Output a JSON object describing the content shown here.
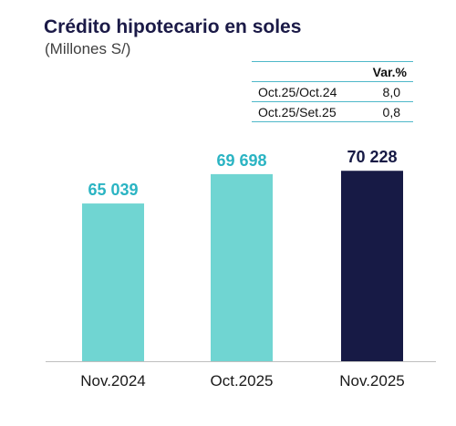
{
  "header": {
    "title": "Crédito hipotecario en soles",
    "subtitle": "(Millones S/)"
  },
  "var_table": {
    "header": "Var.%",
    "rows": [
      {
        "label": "Oct.25/Oct.24",
        "value": "8,0"
      },
      {
        "label": "Oct.25/Set.25",
        "value": "0,8"
      }
    ]
  },
  "chart_data": {
    "type": "bar",
    "title": "Crédito hipotecario en soles",
    "subtitle": "(Millones S/)",
    "categories": [
      "Nov.2024",
      "Oct.2025",
      "Nov.2025"
    ],
    "values": [
      65039,
      69698,
      70228
    ],
    "value_labels": [
      "65 039",
      "69 698",
      "70 228"
    ],
    "bar_colors": [
      "#70d5d2",
      "#70d5d2",
      "#171a45"
    ],
    "label_colors": [
      "#2bb4c3",
      "#2bb4c3",
      "#171a45"
    ],
    "ylim": [
      40000,
      72000
    ],
    "grid": false,
    "legend": "none"
  }
}
